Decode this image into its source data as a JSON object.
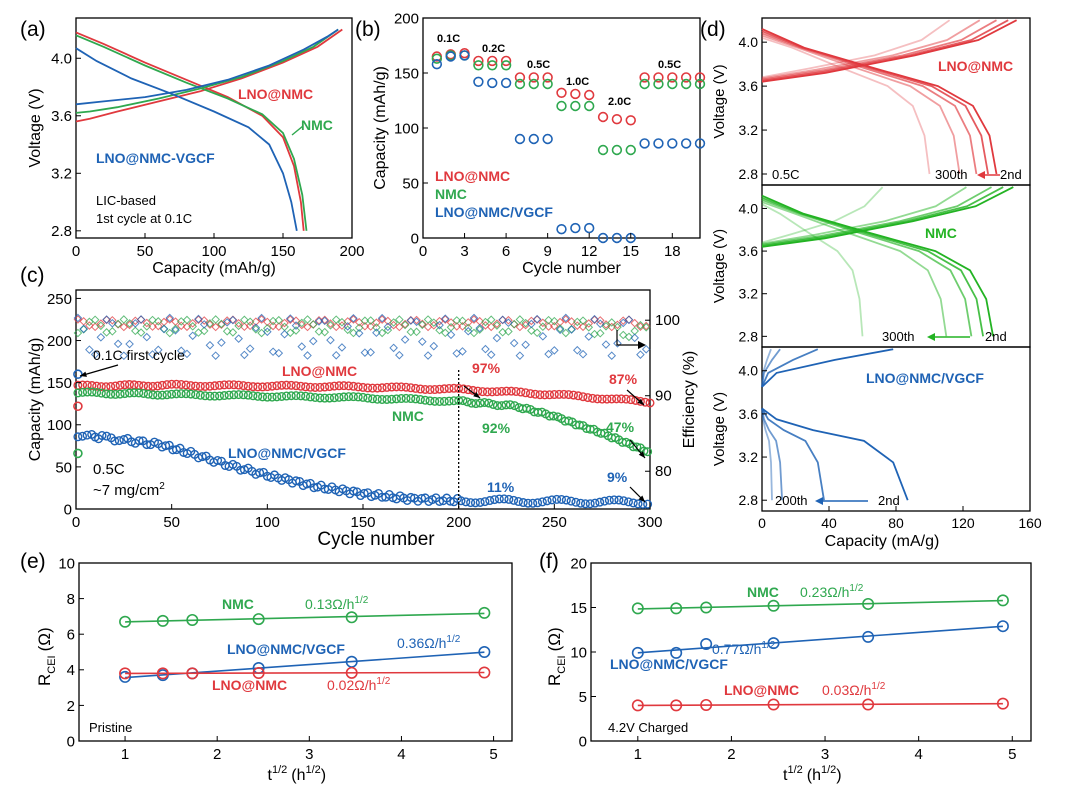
{
  "colors": {
    "lno": "#e0393e",
    "nmc": "#2fa84f",
    "vgcf": "#1f63b5",
    "nmcBright": "#23b323",
    "axis": "#000000"
  },
  "chart_data": [
    {
      "id": "a",
      "type": "line",
      "panel_label": "(a)",
      "xlabel": "Capacity (mAh/g)",
      "ylabel": "Voltage (V)",
      "xlim": [
        0,
        200
      ],
      "ylim": [
        2.75,
        4.28
      ],
      "xticks": [
        0,
        50,
        100,
        150,
        200
      ],
      "yticks": [
        2.8,
        3.2,
        3.6,
        4.0
      ],
      "annotations": [
        "LIC-based",
        "1st cycle at 0.1C"
      ],
      "series": [
        {
          "name": "LNO@NMC",
          "label": "LNO@NMC",
          "color": "#e0393e",
          "charge": [
            [
              0,
              3.56
            ],
            [
              10,
              3.58
            ],
            [
              30,
              3.63
            ],
            [
              60,
              3.7
            ],
            [
              90,
              3.77
            ],
            [
              120,
              3.86
            ],
            [
              150,
              3.97
            ],
            [
              175,
              4.08
            ],
            [
              193,
              4.2
            ]
          ],
          "discharge": [
            [
              0,
              4.18
            ],
            [
              20,
              4.1
            ],
            [
              50,
              3.97
            ],
            [
              80,
              3.85
            ],
            [
              110,
              3.73
            ],
            [
              135,
              3.6
            ],
            [
              150,
              3.45
            ],
            [
              158,
              3.25
            ],
            [
              163,
              3.0
            ],
            [
              165,
              2.8
            ]
          ]
        },
        {
          "name": "NMC",
          "label": "NMC",
          "color": "#2fa84f",
          "charge": [
            [
              0,
              3.62
            ],
            [
              10,
              3.63
            ],
            [
              30,
              3.66
            ],
            [
              60,
              3.72
            ],
            [
              90,
              3.79
            ],
            [
              120,
              3.87
            ],
            [
              150,
              3.98
            ],
            [
              172,
              4.08
            ],
            [
              190,
              4.2
            ]
          ],
          "discharge": [
            [
              0,
              4.16
            ],
            [
              20,
              4.08
            ],
            [
              50,
              3.95
            ],
            [
              80,
              3.83
            ],
            [
              110,
              3.72
            ],
            [
              135,
              3.61
            ],
            [
              150,
              3.48
            ],
            [
              158,
              3.3
            ],
            [
              164,
              3.05
            ],
            [
              167,
              2.8
            ]
          ]
        },
        {
          "name": "LNO@NMC-VGCF",
          "label": "LNO@NMC-VGCF",
          "color": "#1f63b5",
          "charge": [
            [
              0,
              3.68
            ],
            [
              20,
              3.7
            ],
            [
              50,
              3.73
            ],
            [
              80,
              3.78
            ],
            [
              110,
              3.85
            ],
            [
              140,
              3.95
            ],
            [
              165,
              4.06
            ],
            [
              182,
              4.15
            ],
            [
              190,
              4.2
            ]
          ],
          "discharge": [
            [
              0,
              4.07
            ],
            [
              15,
              3.98
            ],
            [
              40,
              3.86
            ],
            [
              70,
              3.75
            ],
            [
              100,
              3.63
            ],
            [
              125,
              3.52
            ],
            [
              140,
              3.4
            ],
            [
              150,
              3.2
            ],
            [
              156,
              3.0
            ],
            [
              160,
              2.8
            ]
          ]
        }
      ]
    },
    {
      "id": "b",
      "type": "scatter",
      "panel_label": "(b)",
      "xlabel": "Cycle number",
      "ylabel": "Capacity (mAh/g)",
      "xlim": [
        0,
        20
      ],
      "ylim": [
        0,
        200
      ],
      "xticks": [
        0,
        3,
        6,
        9,
        12,
        15,
        18
      ],
      "yticks": [
        0,
        50,
        100,
        150,
        200
      ],
      "rate_labels": [
        "0.1C",
        "0.2C",
        "0.5C",
        "1.0C",
        "2.0C",
        "0.5C"
      ],
      "series": [
        {
          "name": "LNO@NMC",
          "color": "#e0393e",
          "x": [
            1,
            2,
            3,
            4,
            5,
            6,
            7,
            8,
            9,
            10,
            11,
            12,
            13,
            14,
            15,
            16,
            17,
            18,
            19,
            20
          ],
          "y": [
            165,
            167,
            168,
            161,
            161,
            161,
            146,
            146,
            146,
            132,
            131,
            130,
            110,
            108,
            107,
            146,
            146,
            146,
            146,
            146
          ]
        },
        {
          "name": "NMC",
          "color": "#2fa84f",
          "x": [
            1,
            2,
            3,
            4,
            5,
            6,
            7,
            8,
            9,
            10,
            11,
            12,
            13,
            14,
            15,
            16,
            17,
            18,
            19,
            20
          ],
          "y": [
            163,
            166,
            166,
            157,
            157,
            157,
            140,
            140,
            140,
            120,
            120,
            120,
            80,
            80,
            80,
            140,
            140,
            140,
            140,
            140
          ]
        },
        {
          "name": "LNO@NMC/VGCF",
          "color": "#1f63b5",
          "x": [
            1,
            2,
            3,
            4,
            5,
            6,
            7,
            8,
            9,
            10,
            11,
            12,
            13,
            14,
            15,
            16,
            17,
            18,
            19,
            20
          ],
          "y": [
            158,
            165,
            166,
            142,
            141,
            141,
            90,
            90,
            90,
            8,
            9,
            9,
            0,
            0,
            0,
            86,
            86,
            86,
            86,
            86
          ]
        }
      ],
      "legend": [
        "LNO@NMC",
        "NMC",
        "LNO@NMC/VGCF"
      ]
    },
    {
      "id": "c",
      "type": "scatter",
      "panel_label": "(c)",
      "xlabel": "Cycle number",
      "ylabel": "Capacity (mAh/g)",
      "y2label": "Efficiency (%)",
      "xlim": [
        0,
        300
      ],
      "ylim": [
        0,
        260
      ],
      "y2lim": [
        75,
        104
      ],
      "xticks": [
        0,
        50,
        100,
        150,
        200,
        250,
        300
      ],
      "yticks": [
        0,
        50,
        100,
        150,
        200,
        250
      ],
      "y2ticks": [
        80,
        90,
        100
      ],
      "annotations": [
        "0.1C first cycle",
        "0.5C",
        "~7 mg/cm",
        "2"
      ],
      "retention_labels": {
        "lno_200": "97%",
        "lno_300": "87%",
        "nmc_200": "92%",
        "nmc_300": "47%",
        "vgcf_200": "11%",
        "vgcf_300": "9%"
      },
      "series": [
        {
          "name": "LNO@NMC",
          "color": "#e0393e",
          "capacity": [
            [
              1,
              146
            ],
            [
              50,
              147
            ],
            [
              100,
              146
            ],
            [
              150,
              145
            ],
            [
              200,
              142
            ],
            [
              250,
              136
            ],
            [
              300,
              127
            ]
          ],
          "efficiency": 99.6
        },
        {
          "name": "NMC",
          "color": "#2fa84f",
          "capacity": [
            [
              1,
              138
            ],
            [
              50,
              136
            ],
            [
              100,
              134
            ],
            [
              150,
              132
            ],
            [
              200,
              128
            ],
            [
              230,
              122
            ],
            [
              250,
              110
            ],
            [
              275,
              90
            ],
            [
              300,
              67
            ]
          ],
          "efficiency": 99.2
        },
        {
          "name": "LNO@NMC/VGCF",
          "color": "#1f63b5",
          "capacity": [
            [
              1,
              88
            ],
            [
              25,
              82
            ],
            [
              45,
              76
            ],
            [
              60,
              66
            ],
            [
              80,
              52
            ],
            [
              100,
              40
            ],
            [
              125,
              27
            ],
            [
              150,
              18
            ],
            [
              175,
              12
            ],
            [
              200,
              10
            ],
            [
              250,
              9
            ],
            [
              300,
              8
            ]
          ],
          "efficiency": 97.8
        }
      ],
      "legend": [
        "LNO@NMC",
        "NMC",
        "LNO@NMC/VGCF"
      ]
    },
    {
      "id": "d",
      "type": "line",
      "panel_label": "(d)",
      "xlabel": "Capacity (mA/g)",
      "ylabel": "Voltage (V)",
      "xlim": [
        0,
        160
      ],
      "ylim": [
        2.7,
        4.22
      ],
      "xticks": [
        0,
        40,
        80,
        120,
        160
      ],
      "yticks": [
        2.8,
        3.2,
        3.6,
        4.0
      ],
      "subpanels": [
        {
          "name": "LNO@NMC",
          "color": "#e0393e",
          "rate": "0.5C",
          "from": "300th",
          "to": "2nd",
          "end_capacities": [
            140,
            135,
            128,
            118,
            100
          ]
        },
        {
          "name": "NMC",
          "color": "#23b323",
          "rate": "",
          "from": "300th",
          "to": "2nd",
          "end_capacities": [
            138,
            132,
            125,
            110,
            60
          ]
        },
        {
          "name": "LNO@NMC/VGCF",
          "color": "#1f63b5",
          "rate": "",
          "from": "200th",
          "to": "2nd",
          "end_capacities": [
            87,
            37,
            12,
            6
          ]
        }
      ]
    },
    {
      "id": "e",
      "type": "line",
      "panel_label": "(e)",
      "xlabel": "t",
      "xlabel_sup": "1/2",
      "xlabel_unit": "(h",
      "xlabel_unit_sup": "1/2",
      "ylabel": "R",
      "ylabel_sub": "CEI",
      "ylabel_unit": "(Ω)",
      "xlim": [
        0.5,
        5.2
      ],
      "ylim": [
        0,
        10
      ],
      "xticks": [
        1,
        2,
        3,
        4,
        5
      ],
      "yticks": [
        0,
        2,
        4,
        6,
        8,
        10
      ],
      "annotations": [
        "Pristine"
      ],
      "x": [
        1,
        1.41,
        1.73,
        2.45,
        3.46,
        4.9
      ],
      "series": [
        {
          "name": "NMC",
          "color": "#2fa84f",
          "y": [
            6.7,
            6.75,
            6.8,
            6.85,
            6.95,
            7.2
          ],
          "slope": "0.13Ω/h",
          "slope_sup": "1/2"
        },
        {
          "name": "LNO@NMC/VGCF",
          "color": "#1f63b5",
          "y": [
            3.6,
            3.7,
            3.8,
            4.1,
            4.45,
            5.0
          ],
          "slope": "0.36Ω/h",
          "slope_sup": "1/2"
        },
        {
          "name": "LNO@NMC",
          "color": "#e0393e",
          "y": [
            3.8,
            3.8,
            3.8,
            3.82,
            3.83,
            3.85
          ],
          "slope": "0.02Ω/h",
          "slope_sup": "1/2"
        }
      ]
    },
    {
      "id": "f",
      "type": "line",
      "panel_label": "(f)",
      "xlabel": "t",
      "xlabel_sup": "1/2",
      "xlabel_unit": "(h",
      "xlabel_unit_sup": "1/2",
      "ylabel": "R",
      "ylabel_sub": "CEI",
      "ylabel_unit": "(Ω)",
      "xlim": [
        0.5,
        5.2
      ],
      "ylim": [
        0,
        20
      ],
      "xticks": [
        1,
        2,
        3,
        4,
        5
      ],
      "yticks": [
        0,
        5,
        10,
        15,
        20
      ],
      "annotations": [
        "4.2V Charged"
      ],
      "x": [
        1,
        1.41,
        1.73,
        2.45,
        3.46,
        4.9
      ],
      "series": [
        {
          "name": "NMC",
          "color": "#2fa84f",
          "y": [
            14.9,
            14.9,
            15.0,
            15.2,
            15.4,
            15.8
          ],
          "slope": "0.23Ω/h",
          "slope_sup": "1/2"
        },
        {
          "name": "LNO@NMC/VGCF",
          "color": "#1f63b5",
          "y": [
            9.9,
            9.9,
            10.9,
            11.0,
            11.7,
            12.9
          ],
          "slope": "0.77Ω/h",
          "slope_sup": "1/2"
        },
        {
          "name": "LNO@NMC",
          "color": "#e0393e",
          "y": [
            4.0,
            4.0,
            4.05,
            4.1,
            4.1,
            4.2
          ],
          "slope": "0.03Ω/h",
          "slope_sup": "1/2"
        }
      ]
    }
  ]
}
